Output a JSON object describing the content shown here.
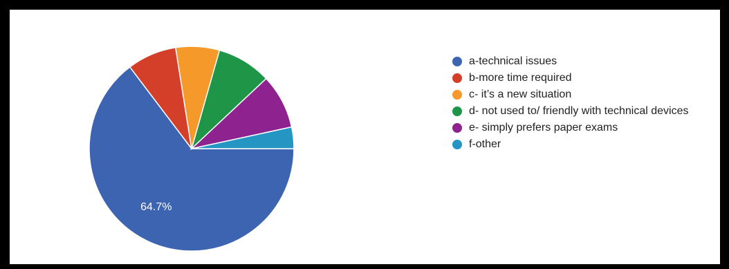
{
  "chart_data": {
    "type": "pie",
    "title": "",
    "legend_position": "right",
    "slices": [
      {
        "label": "a-technical issues",
        "value": 64.7,
        "color": "#3d64b0",
        "data_label": "64.7%"
      },
      {
        "label": "b-more time required",
        "value": 7.8,
        "color": "#d43f2a",
        "data_label": ""
      },
      {
        "label": "c- it’s a new situation",
        "value": 6.9,
        "color": "#f4992a",
        "data_label": ""
      },
      {
        "label": "d- not used to/ friendly with technical devices",
        "value": 8.6,
        "color": "#1f9547",
        "data_label": ""
      },
      {
        "label": "e- simply prefers paper exams",
        "value": 8.6,
        "color": "#8e2390",
        "data_label": ""
      },
      {
        "label": "f-other",
        "value": 3.4,
        "color": "#2595c4",
        "data_label": ""
      }
    ]
  }
}
